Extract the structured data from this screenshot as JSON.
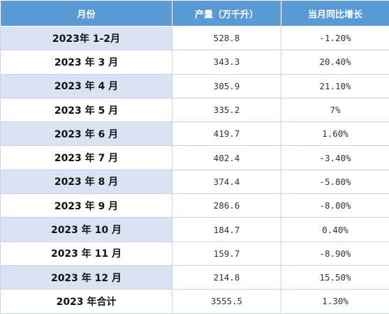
{
  "table": {
    "headers": [
      "月份",
      "产量（万千升）",
      "当月同比增长"
    ],
    "rows": [
      {
        "month": "2023年 1-2月",
        "output": "528.8",
        "growth": "-1.20%"
      },
      {
        "month": "2023 年 3 月",
        "output": "343.3",
        "growth": "20.40%"
      },
      {
        "month": "2023 年 4 月",
        "output": "305.9",
        "growth": "21.10%"
      },
      {
        "month": "2023 年 5 月",
        "output": "335.2",
        "growth": "7%"
      },
      {
        "month": "2023 年 6 月",
        "output": "419.7",
        "growth": "1.60%"
      },
      {
        "month": "2023 年 7 月",
        "output": "402.4",
        "growth": "-3.40%"
      },
      {
        "month": "2023 年 8 月",
        "output": "374.4",
        "growth": "-5.80%"
      },
      {
        "month": "2023 年 9 月",
        "output": "286.6",
        "growth": "-8.00%"
      },
      {
        "month": "2023 年 10 月",
        "output": "184.7",
        "growth": "0.40%"
      },
      {
        "month": "2023 年 11 月",
        "output": "159.7",
        "growth": "-8.90%"
      },
      {
        "month": "2023 年 12 月",
        "output": "214.8",
        "growth": "15.50%"
      },
      {
        "month": "2023 年合计",
        "output": "3555.5",
        "growth": "1.30%"
      }
    ]
  },
  "colors": {
    "header_bg": "#5b9bd5",
    "header_text": "#ffffff",
    "shaded_cell": "#dae3f3",
    "border": "#c9d3e2"
  }
}
